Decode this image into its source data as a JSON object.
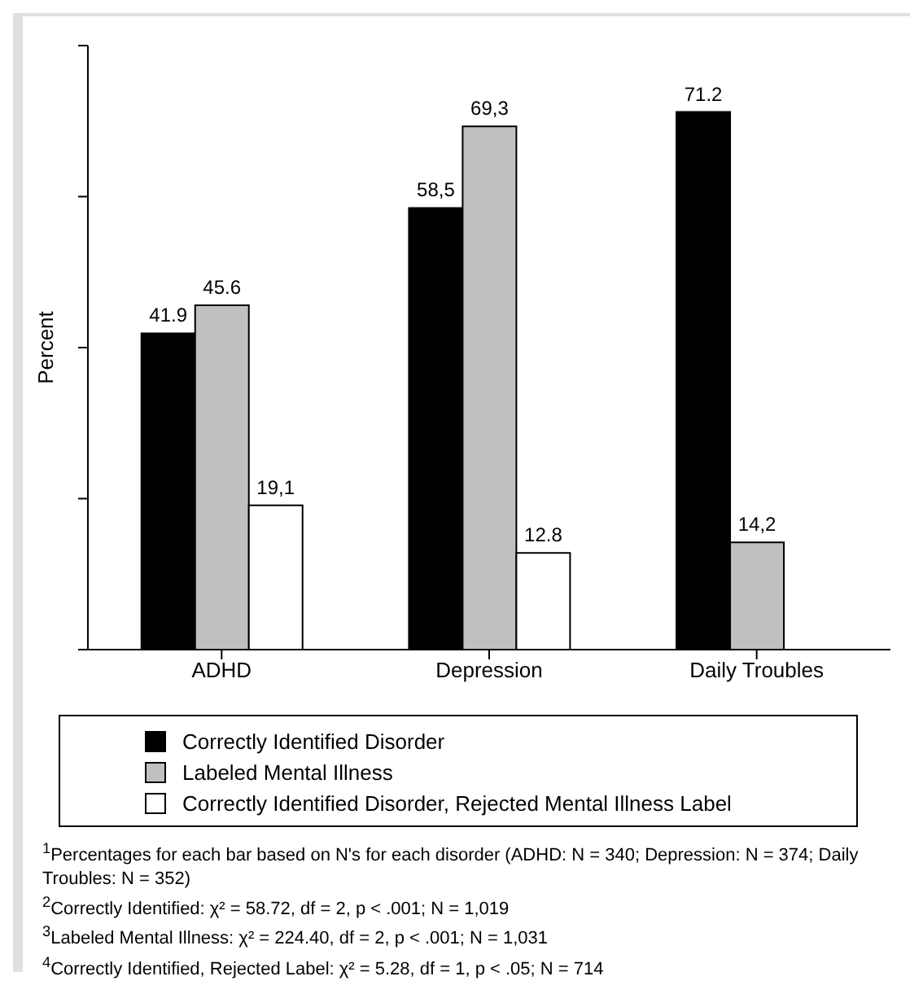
{
  "chart_data": {
    "type": "bar",
    "ylabel": "Percent",
    "categories": [
      "ADHD",
      "Depression",
      "Daily Troubles"
    ],
    "series": [
      {
        "name": "Correctly Identified Disorder",
        "color": "#000000",
        "values": [
          41.9,
          58.5,
          71.2
        ],
        "value_labels": [
          "41.9",
          "58,5",
          "71.2"
        ]
      },
      {
        "name": "Labeled Mental Illness",
        "color": "#c0c0c0",
        "values": [
          45.6,
          69.3,
          14.2
        ],
        "value_labels": [
          "45.6",
          "69,3",
          "14,2"
        ]
      },
      {
        "name": "Correctly Identified Disorder, Rejected Mental Illness Label",
        "color": "#ffffff",
        "values": [
          19.1,
          12.8,
          null
        ],
        "value_labels": [
          "19,1",
          "12.8",
          null
        ]
      }
    ],
    "ylim": [
      0,
      80
    ],
    "yticks": [
      {
        "value": 0,
        "label": null
      },
      {
        "value": 20,
        "label": null
      },
      {
        "value": 40,
        "label": null
      },
      {
        "value": 60,
        "label": null
      },
      {
        "value": 80,
        "label": null
      }
    ],
    "grid": false,
    "legend": "bottom",
    "annotations": [
      "$^{1}$Percentages for each bar based on N's for each disorder (ADHD: N = 340; Depression: N = 374; Daily Troubles: N = 352)",
      "$^{2}$Correctly Identified: χ² = 58.72, df = 2, p < .001; N = 1,019",
      "$^{3}$Labeled Mental Illness: χ² = 224.40, df = 2, p < .001; N = 1,031",
      "$^{4}$Correctly Identified, Rejected Label: χ² = 5.28, df = 1, p < .05; N = 714"
    ]
  }
}
